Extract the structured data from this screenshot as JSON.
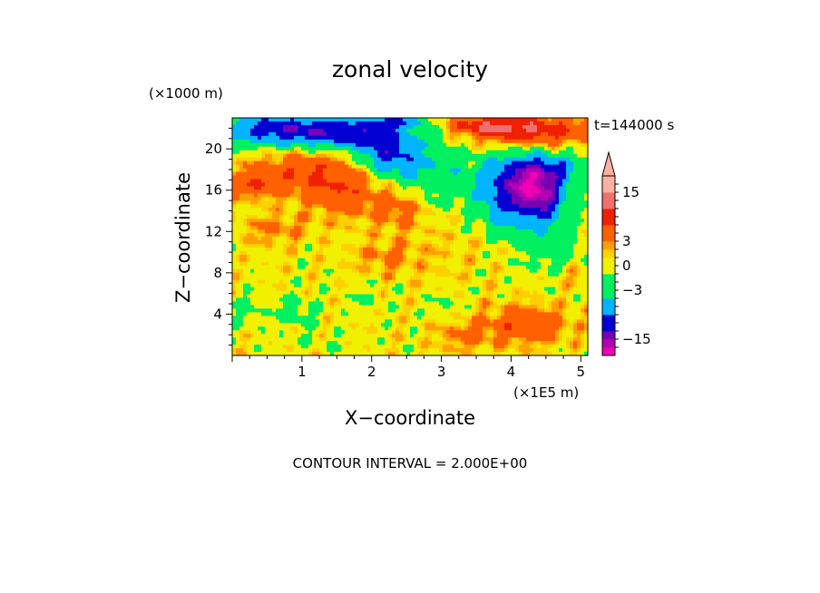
{
  "chart_data": {
    "type": "heatmap",
    "title": "zonal velocity",
    "xlabel": "X−coordinate",
    "ylabel": "Z−coordinate",
    "x_unit": "(×1E5 m)",
    "y_unit": "(×1000 m)",
    "time_label": "t=144000 s",
    "contour_note": "CONTOUR INTERVAL = 2.000E+00",
    "xlim": [
      0,
      5.1
    ],
    "ylim": [
      0,
      23
    ],
    "x_ticks": [
      1,
      2,
      3,
      4,
      5
    ],
    "y_ticks": [
      4,
      8,
      12,
      16,
      20
    ],
    "grid": false,
    "colorbar": {
      "placement": "right",
      "extend": "max",
      "levels": [
        -19,
        -17,
        -15,
        -13,
        -11,
        -9,
        -7,
        -5,
        -3,
        -2,
        -1,
        0,
        1,
        2,
        3,
        5,
        7,
        9,
        11,
        13,
        15,
        17,
        19
      ],
      "colors": [
        "#f000b4",
        "#b400b4",
        "#7800b4",
        "#0000d2",
        "#00b4ff",
        "#00f060",
        "#f0f000",
        "#ffa000",
        "#ff6000",
        "#f02000",
        "#f07070",
        "#ffb0a0",
        "#ffb0a0"
      ],
      "tick_labels": [
        {
          "value": 15,
          "text": "15"
        },
        {
          "value": 3,
          "text": "3"
        },
        {
          "value": 0,
          "text": "0"
        },
        {
          "value": -3,
          "text": "−3"
        },
        {
          "value": -15,
          "text": "−15"
        }
      ]
    },
    "field_features": [
      {
        "x": 0.6,
        "z": 21.9,
        "value": -11,
        "sx": 0.9,
        "sz": 1.6
      },
      {
        "x": 1.55,
        "z": 21.5,
        "value": -9,
        "sx": 0.7,
        "sz": 1.4
      },
      {
        "x": 2.2,
        "z": 19.8,
        "value": -9,
        "sx": 0.45,
        "sz": 2.4
      },
      {
        "x": 2.75,
        "z": 17.8,
        "value": -5,
        "sx": 0.6,
        "sz": 3.8
      },
      {
        "x": 4.05,
        "z": 16.4,
        "value": -12,
        "sx": 0.55,
        "sz": 2.6
      },
      {
        "x": 4.45,
        "z": 15.4,
        "value": -10,
        "sx": 0.35,
        "sz": 2.8
      },
      {
        "x": 4.6,
        "z": 18.2,
        "value": -6,
        "sx": 0.7,
        "sz": 1.4
      },
      {
        "x": 3.9,
        "z": 13.5,
        "value": -4,
        "sx": 0.4,
        "sz": 2.0
      },
      {
        "x": 4.6,
        "z": 10.5,
        "value": -3,
        "sx": 0.5,
        "sz": 3.0
      },
      {
        "x": 4.3,
        "z": 21.8,
        "value": 10,
        "sx": 0.8,
        "sz": 1.3
      },
      {
        "x": 3.6,
        "z": 22.3,
        "value": 7,
        "sx": 0.5,
        "sz": 0.9
      },
      {
        "x": 1.0,
        "z": 17.8,
        "value": 5,
        "sx": 0.8,
        "sz": 2.2
      },
      {
        "x": 0.3,
        "z": 16.5,
        "value": 5,
        "sx": 0.35,
        "sz": 1.2
      },
      {
        "x": 1.6,
        "z": 16.0,
        "value": 5,
        "sx": 0.55,
        "sz": 2.6
      },
      {
        "x": 2.4,
        "z": 14.5,
        "value": 5,
        "sx": 0.4,
        "sz": 2.2
      },
      {
        "x": 0.6,
        "z": 12.2,
        "value": 3,
        "sx": 0.45,
        "sz": 1.4
      },
      {
        "x": 2.2,
        "z": 9.5,
        "value": 3,
        "sx": 0.45,
        "sz": 1.4
      },
      {
        "x": 4.2,
        "z": 3.0,
        "value": 6,
        "sx": 0.6,
        "sz": 1.8
      },
      {
        "x": 3.3,
        "z": 1.8,
        "value": 3,
        "sx": 0.4,
        "sz": 1.4
      },
      {
        "x": 0.2,
        "z": 4.5,
        "value": -2,
        "sx": 0.25,
        "sz": 1.6
      },
      {
        "x": 0.9,
        "z": 4.3,
        "value": -3,
        "sx": 0.3,
        "sz": 1.6
      },
      {
        "x": 1.9,
        "z": 5.3,
        "value": -2,
        "sx": 0.2,
        "sz": 1.2
      },
      {
        "x": 3.05,
        "z": 5.0,
        "value": -2,
        "sx": 0.22,
        "sz": 1.2
      },
      {
        "x": 4.9,
        "z": 7.8,
        "value": 2,
        "sx": 0.35,
        "sz": 1.2
      },
      {
        "x": 1.3,
        "z": 1.2,
        "value": -1,
        "sx": 0.6,
        "sz": 1.0
      },
      {
        "x": 3.0,
        "z": 11.0,
        "value": 1,
        "sx": 0.6,
        "sz": 4.0
      },
      {
        "x": 2.3,
        "z": 22.6,
        "value": -8,
        "sx": 0.4,
        "sz": 0.6
      }
    ],
    "background_value": 0.4
  }
}
